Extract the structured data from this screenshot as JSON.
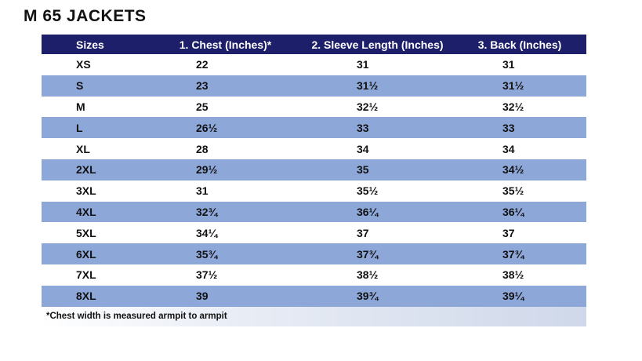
{
  "title": "M 65 JACKETS",
  "table": {
    "header": [
      "Sizes",
      "1. Chest (Inches)*",
      "2. Sleeve Length (Inches)",
      "3. Back (Inches)"
    ],
    "rows": [
      [
        "XS",
        "22",
        "31",
        "31"
      ],
      [
        "S",
        "23",
        "31½",
        "31½"
      ],
      [
        "M",
        "25",
        "32½",
        "32½"
      ],
      [
        "L",
        "26½",
        "33",
        "33"
      ],
      [
        "XL",
        "28",
        "34",
        "34"
      ],
      [
        "2XL",
        "29½",
        "35",
        "34½"
      ],
      [
        "3XL",
        "31",
        "35½",
        "35½"
      ],
      [
        "4XL",
        "32¾",
        "36¼",
        "36¼"
      ],
      [
        "5XL",
        "34¼",
        "37",
        "37"
      ],
      [
        "6XL",
        "35¾",
        "37¾",
        "37¾"
      ],
      [
        "7XL",
        "37½",
        "38½",
        "38½"
      ],
      [
        "8XL",
        "39",
        "39¾",
        "39¼"
      ]
    ],
    "footnote": "*Chest width is measured armpit to armpit"
  }
}
